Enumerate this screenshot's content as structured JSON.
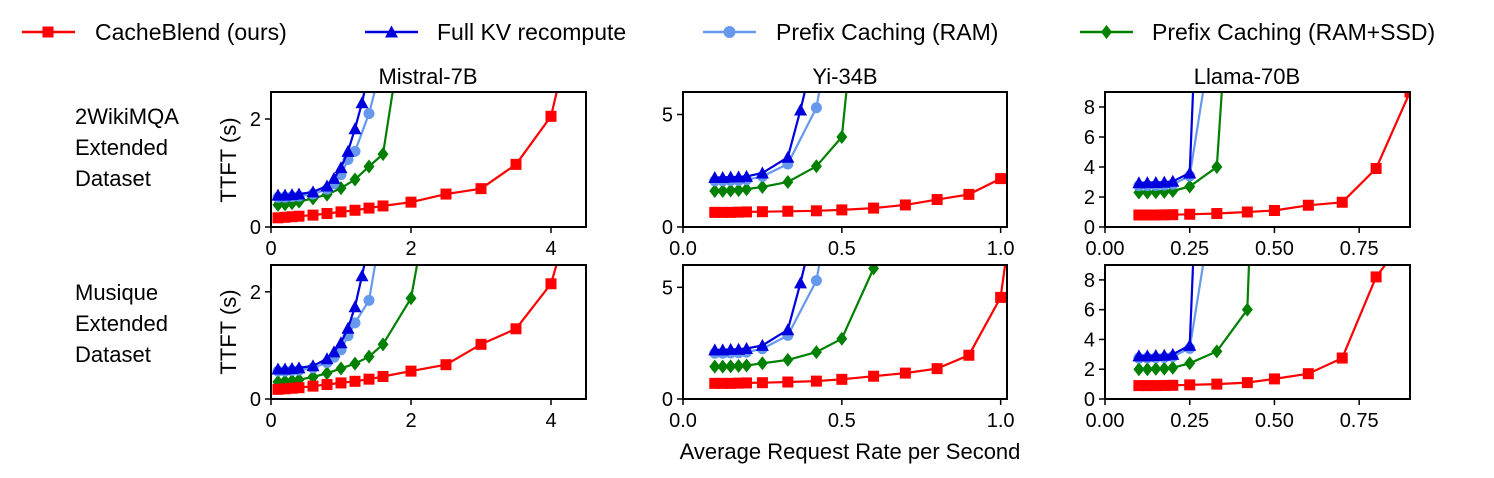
{
  "legend": {
    "entries": [
      {
        "label": "CacheBlend (ours)",
        "color": "#ff0000",
        "marker": "square"
      },
      {
        "label": "Full KV recompute",
        "color": "#0000dd",
        "marker": "triangle"
      },
      {
        "label": "Prefix Caching (RAM)",
        "color": "#6699ee",
        "marker": "circle"
      },
      {
        "label": "Prefix Caching (RAM+SSD)",
        "color": "#008000",
        "marker": "diamond"
      }
    ]
  },
  "row_labels": [
    [
      "2WikiMQA",
      "Extended",
      "Dataset"
    ],
    [
      "Musique",
      "Extended",
      "Dataset"
    ]
  ],
  "column_titles": [
    "Mistral-7B",
    "Yi-34B",
    "Llama-70B"
  ],
  "ylabel": "TTFT (s)",
  "xlabel": "Average Request Rate per Second",
  "chart_data": [
    {
      "type": "line",
      "row": 0,
      "col": 0,
      "title": "Mistral-7B",
      "ylabel": "TTFT (s)",
      "xlim": [
        0,
        4.5
      ],
      "ylim": [
        0,
        2.5
      ],
      "xticks": [
        0,
        2,
        4
      ],
      "xtick_labels": [
        "0",
        "2",
        "4"
      ],
      "yticks": [
        0,
        2
      ],
      "ytick_labels": [
        "0",
        "2"
      ],
      "series": [
        {
          "name": "CacheBlend (ours)",
          "x": [
            0.1,
            0.2,
            0.3,
            0.4,
            0.6,
            0.8,
            1.0,
            1.2,
            1.4,
            1.6,
            2.0,
            2.5,
            3.0,
            3.5,
            4.0,
            4.1
          ],
          "y": [
            0.17,
            0.18,
            0.19,
            0.2,
            0.22,
            0.25,
            0.28,
            0.31,
            0.35,
            0.39,
            0.46,
            0.61,
            0.71,
            1.16,
            2.05,
            2.6
          ]
        },
        {
          "name": "Full KV recompute",
          "x": [
            0.1,
            0.2,
            0.3,
            0.4,
            0.6,
            0.8,
            0.9,
            1.0,
            1.1,
            1.2,
            1.3,
            1.35
          ],
          "y": [
            0.59,
            0.59,
            0.6,
            0.61,
            0.65,
            0.76,
            0.9,
            1.1,
            1.4,
            1.82,
            2.3,
            2.6
          ]
        },
        {
          "name": "Prefix Caching (RAM)",
          "x": [
            0.1,
            0.2,
            0.3,
            0.4,
            0.6,
            0.8,
            0.9,
            1.0,
            1.1,
            1.2,
            1.4,
            1.5
          ],
          "y": [
            0.55,
            0.55,
            0.56,
            0.57,
            0.61,
            0.7,
            0.8,
            0.97,
            1.25,
            1.4,
            2.1,
            2.6
          ]
        },
        {
          "name": "Prefix Caching (RAM+SSD)",
          "x": [
            0.1,
            0.2,
            0.3,
            0.4,
            0.6,
            0.8,
            1.0,
            1.2,
            1.4,
            1.6,
            1.75
          ],
          "y": [
            0.41,
            0.42,
            0.44,
            0.47,
            0.53,
            0.6,
            0.72,
            0.88,
            1.12,
            1.35,
            2.6
          ]
        }
      ]
    },
    {
      "type": "line",
      "row": 0,
      "col": 1,
      "title": "Yi-34B",
      "ylabel": "",
      "xlim": [
        0,
        1.02
      ],
      "ylim": [
        0,
        6
      ],
      "xticks": [
        0,
        0.5,
        1.0
      ],
      "xtick_labels": [
        "0.0",
        "0.5",
        "1.0"
      ],
      "yticks": [
        0,
        5
      ],
      "ytick_labels": [
        "0",
        "5"
      ],
      "series": [
        {
          "name": "CacheBlend (ours)",
          "x": [
            0.1,
            0.125,
            0.15,
            0.175,
            0.2,
            0.25,
            0.33,
            0.42,
            0.5,
            0.6,
            0.7,
            0.8,
            0.9,
            1.0
          ],
          "y": [
            0.65,
            0.65,
            0.65,
            0.66,
            0.67,
            0.68,
            0.7,
            0.72,
            0.76,
            0.84,
            0.98,
            1.22,
            1.45,
            2.15
          ]
        },
        {
          "name": "Full KV recompute",
          "x": [
            0.1,
            0.125,
            0.15,
            0.175,
            0.2,
            0.25,
            0.33,
            0.37,
            0.385
          ],
          "y": [
            2.2,
            2.2,
            2.22,
            2.23,
            2.25,
            2.4,
            3.1,
            5.2,
            6.1
          ]
        },
        {
          "name": "Prefix Caching (RAM)",
          "x": [
            0.1,
            0.125,
            0.15,
            0.175,
            0.2,
            0.25,
            0.33,
            0.42,
            0.43
          ],
          "y": [
            2.05,
            2.05,
            2.06,
            2.07,
            2.1,
            2.25,
            2.8,
            5.3,
            6.1
          ]
        },
        {
          "name": "Prefix Caching (RAM+SSD)",
          "x": [
            0.1,
            0.125,
            0.15,
            0.175,
            0.2,
            0.25,
            0.33,
            0.42,
            0.5,
            0.515
          ],
          "y": [
            1.6,
            1.6,
            1.62,
            1.64,
            1.68,
            1.78,
            2.0,
            2.7,
            4.0,
            6.1
          ]
        }
      ]
    },
    {
      "type": "line",
      "row": 0,
      "col": 2,
      "title": "Llama-70B",
      "ylabel": "",
      "xlim": [
        0,
        0.9
      ],
      "ylim": [
        0,
        9
      ],
      "xticks": [
        0,
        0.25,
        0.5,
        0.75
      ],
      "xtick_labels": [
        "0.00",
        "0.25",
        "0.50",
        "0.75"
      ],
      "yticks": [
        0,
        2,
        4,
        6,
        8
      ],
      "ytick_labels": [
        "0",
        "2",
        "4",
        "6",
        "8"
      ],
      "series": [
        {
          "name": "CacheBlend (ours)",
          "x": [
            0.1,
            0.125,
            0.15,
            0.175,
            0.2,
            0.25,
            0.33,
            0.42,
            0.5,
            0.6,
            0.7,
            0.8,
            0.9
          ],
          "y": [
            0.8,
            0.8,
            0.8,
            0.81,
            0.82,
            0.85,
            0.9,
            1.0,
            1.1,
            1.45,
            1.65,
            3.9,
            9.0
          ]
        },
        {
          "name": "Full KV recompute",
          "x": [
            0.1,
            0.125,
            0.15,
            0.175,
            0.2,
            0.25,
            0.26
          ],
          "y": [
            2.95,
            2.96,
            2.97,
            2.99,
            3.05,
            3.6,
            9.1
          ]
        },
        {
          "name": "Prefix Caching (RAM)",
          "x": [
            0.1,
            0.125,
            0.15,
            0.175,
            0.2,
            0.25,
            0.29
          ],
          "y": [
            2.75,
            2.76,
            2.77,
            2.79,
            2.85,
            3.4,
            9.1
          ]
        },
        {
          "name": "Prefix Caching (RAM+SSD)",
          "x": [
            0.1,
            0.125,
            0.15,
            0.175,
            0.2,
            0.25,
            0.33,
            0.345
          ],
          "y": [
            2.3,
            2.3,
            2.32,
            2.34,
            2.4,
            2.7,
            4.0,
            9.1
          ]
        }
      ]
    },
    {
      "type": "line",
      "row": 1,
      "col": 0,
      "title": "",
      "ylabel": "TTFT (s)",
      "xlim": [
        0,
        4.5
      ],
      "ylim": [
        0,
        2.5
      ],
      "xticks": [
        0,
        2,
        4
      ],
      "xtick_labels": [
        "0",
        "2",
        "4"
      ],
      "yticks": [
        0,
        2
      ],
      "ytick_labels": [
        "0",
        "2"
      ],
      "series": [
        {
          "name": "CacheBlend (ours)",
          "x": [
            0.1,
            0.2,
            0.3,
            0.4,
            0.6,
            0.8,
            1.0,
            1.2,
            1.4,
            1.6,
            2.0,
            2.5,
            3.0,
            3.5,
            4.0,
            4.1
          ],
          "y": [
            0.18,
            0.19,
            0.2,
            0.21,
            0.24,
            0.27,
            0.3,
            0.33,
            0.37,
            0.42,
            0.52,
            0.64,
            1.02,
            1.31,
            2.15,
            2.6
          ]
        },
        {
          "name": "Full KV recompute",
          "x": [
            0.1,
            0.2,
            0.3,
            0.4,
            0.6,
            0.8,
            0.9,
            1.0,
            1.1,
            1.2,
            1.3,
            1.35
          ],
          "y": [
            0.56,
            0.56,
            0.57,
            0.58,
            0.62,
            0.75,
            0.88,
            1.05,
            1.32,
            1.72,
            2.3,
            2.6
          ]
        },
        {
          "name": "Prefix Caching (RAM)",
          "x": [
            0.1,
            0.2,
            0.3,
            0.4,
            0.6,
            0.8,
            0.9,
            1.0,
            1.1,
            1.2,
            1.4,
            1.5
          ],
          "y": [
            0.52,
            0.52,
            0.53,
            0.54,
            0.58,
            0.68,
            0.78,
            0.92,
            1.18,
            1.42,
            1.84,
            2.6
          ]
        },
        {
          "name": "Prefix Caching (RAM+SSD)",
          "x": [
            0.1,
            0.2,
            0.3,
            0.4,
            0.6,
            0.8,
            1.0,
            1.2,
            1.4,
            1.6,
            2.0,
            2.1
          ],
          "y": [
            0.32,
            0.33,
            0.34,
            0.36,
            0.41,
            0.48,
            0.57,
            0.66,
            0.79,
            1.02,
            1.88,
            2.6
          ]
        }
      ]
    },
    {
      "type": "line",
      "row": 1,
      "col": 1,
      "title": "",
      "ylabel": "",
      "xlim": [
        0,
        1.02
      ],
      "ylim": [
        0,
        6
      ],
      "xticks": [
        0,
        0.5,
        1.0
      ],
      "xtick_labels": [
        "0.0",
        "0.5",
        "1.0"
      ],
      "yticks": [
        0,
        5
      ],
      "ytick_labels": [
        "0",
        "5"
      ],
      "series": [
        {
          "name": "CacheBlend (ours)",
          "x": [
            0.1,
            0.125,
            0.15,
            0.175,
            0.2,
            0.25,
            0.33,
            0.42,
            0.5,
            0.6,
            0.7,
            0.8,
            0.9,
            1.0,
            1.015
          ],
          "y": [
            0.7,
            0.7,
            0.7,
            0.71,
            0.72,
            0.73,
            0.76,
            0.8,
            0.88,
            1.02,
            1.16,
            1.36,
            1.96,
            4.55,
            6.1
          ]
        },
        {
          "name": "Full KV recompute",
          "x": [
            0.1,
            0.125,
            0.15,
            0.175,
            0.2,
            0.25,
            0.33,
            0.37,
            0.385
          ],
          "y": [
            2.2,
            2.2,
            2.22,
            2.23,
            2.26,
            2.4,
            3.1,
            5.2,
            6.1
          ]
        },
        {
          "name": "Prefix Caching (RAM)",
          "x": [
            0.1,
            0.125,
            0.15,
            0.175,
            0.2,
            0.25,
            0.33,
            0.42,
            0.43
          ],
          "y": [
            2.05,
            2.05,
            2.06,
            2.07,
            2.1,
            2.25,
            2.85,
            5.3,
            6.1
          ]
        },
        {
          "name": "Prefix Caching (RAM+SSD)",
          "x": [
            0.1,
            0.125,
            0.15,
            0.175,
            0.2,
            0.25,
            0.33,
            0.42,
            0.5,
            0.6,
            0.61
          ],
          "y": [
            1.45,
            1.45,
            1.46,
            1.48,
            1.5,
            1.6,
            1.75,
            2.1,
            2.7,
            5.85,
            6.1
          ]
        }
      ]
    },
    {
      "type": "line",
      "row": 1,
      "col": 2,
      "title": "",
      "ylabel": "",
      "xlim": [
        0,
        0.9
      ],
      "ylim": [
        0,
        9
      ],
      "xticks": [
        0,
        0.25,
        0.5,
        0.75
      ],
      "xtick_labels": [
        "0.00",
        "0.25",
        "0.50",
        "0.75"
      ],
      "yticks": [
        0,
        2,
        4,
        6,
        8
      ],
      "ytick_labels": [
        "0",
        "2",
        "4",
        "6",
        "8"
      ],
      "series": [
        {
          "name": "CacheBlend (ours)",
          "x": [
            0.1,
            0.125,
            0.15,
            0.175,
            0.2,
            0.25,
            0.33,
            0.42,
            0.5,
            0.6,
            0.7,
            0.8,
            0.83
          ],
          "y": [
            0.9,
            0.9,
            0.9,
            0.91,
            0.92,
            0.95,
            1.0,
            1.1,
            1.35,
            1.7,
            2.75,
            8.2,
            9.1
          ]
        },
        {
          "name": "Full KV recompute",
          "x": [
            0.1,
            0.125,
            0.15,
            0.175,
            0.2,
            0.25,
            0.26
          ],
          "y": [
            2.9,
            2.9,
            2.92,
            2.94,
            3.0,
            3.6,
            9.1
          ]
        },
        {
          "name": "Prefix Caching (RAM)",
          "x": [
            0.1,
            0.125,
            0.15,
            0.175,
            0.2,
            0.25,
            0.29
          ],
          "y": [
            2.75,
            2.76,
            2.77,
            2.79,
            2.85,
            3.4,
            9.1
          ]
        },
        {
          "name": "Prefix Caching (RAM+SSD)",
          "x": [
            0.1,
            0.125,
            0.15,
            0.175,
            0.2,
            0.25,
            0.33,
            0.42,
            0.425
          ],
          "y": [
            2.0,
            2.0,
            2.02,
            2.04,
            2.1,
            2.4,
            3.2,
            6.0,
            9.1
          ]
        }
      ]
    }
  ]
}
